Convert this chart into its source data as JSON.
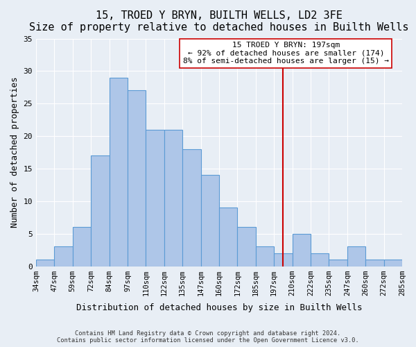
{
  "title": "15, TROED Y BRYN, BUILTH WELLS, LD2 3FE",
  "subtitle": "Size of property relative to detached houses in Builth Wells",
  "xlabel": "Distribution of detached houses by size in Builth Wells",
  "ylabel": "Number of detached properties",
  "footnote1": "Contains HM Land Registry data © Crown copyright and database right 2024.",
  "footnote2": "Contains public sector information licensed under the Open Government Licence v3.0.",
  "bin_labels": [
    "34sqm",
    "47sqm",
    "59sqm",
    "72sqm",
    "84sqm",
    "97sqm",
    "110sqm",
    "122sqm",
    "135sqm",
    "147sqm",
    "160sqm",
    "172sqm",
    "185sqm",
    "197sqm",
    "210sqm",
    "222sqm",
    "235sqm",
    "247sqm",
    "260sqm",
    "272sqm",
    "285sqm"
  ],
  "bar_heights": [
    1,
    3,
    6,
    17,
    29,
    27,
    21,
    21,
    18,
    14,
    9,
    6,
    3,
    2,
    5,
    2,
    1,
    3,
    1,
    1
  ],
  "bar_color": "#aec6e8",
  "bar_edge_color": "#5b9bd5",
  "vline_position": 13.5,
  "vline_color": "#cc0000",
  "annotation_text": "15 TROED Y BRYN: 197sqm\n← 92% of detached houses are smaller (174)\n8% of semi-detached houses are larger (15) →",
  "annotation_box_color": "#ffffff",
  "annotation_box_edge": "#cc0000",
  "ylim": [
    0,
    35
  ],
  "yticks": [
    0,
    5,
    10,
    15,
    20,
    25,
    30,
    35
  ],
  "bg_color": "#e8eef5",
  "plot_bg_color": "#e8eef5",
  "grid_color": "#ffffff",
  "title_fontsize": 11,
  "subtitle_fontsize": 9.5,
  "axis_label_fontsize": 9,
  "tick_fontsize": 7.5,
  "annotation_fontsize": 8
}
